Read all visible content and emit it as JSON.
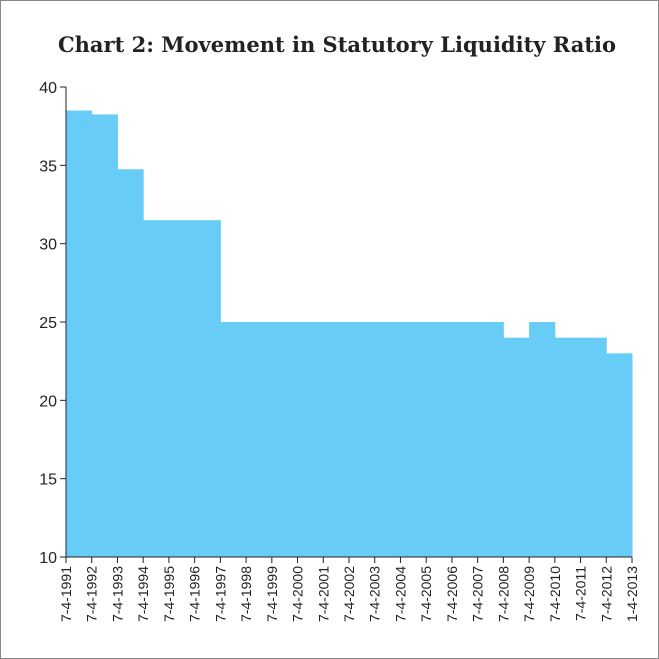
{
  "chart_data": {
    "type": "step-area",
    "title": "Chart 2: Movement in Statutory Liquidity Ratio",
    "categories": [
      "7-4-1991",
      "7-4-1992",
      "7-4-1993",
      "7-4-1994",
      "7-4-1995",
      "7-4-1996",
      "7-4-1997",
      "7-4-1998",
      "7-4-1999",
      "7-4-2000",
      "7-4-2001",
      "7-4-2002",
      "7-4-2003",
      "7-4-2004",
      "7-4-2005",
      "7-4-2006",
      "7-4-2007",
      "7-4-2008",
      "7-4-2009",
      "7-4-2010",
      "7-4-2011",
      "7-4-2012",
      "1-4-2013"
    ],
    "values": [
      38.5,
      38.25,
      34.75,
      31.5,
      31.5,
      31.5,
      25,
      25,
      25,
      25,
      25,
      25,
      25,
      25,
      25,
      25,
      25,
      24,
      25,
      24,
      24,
      23,
      23
    ],
    "color": "#68cdf6",
    "ylim": [
      10,
      40
    ],
    "yticks": [
      10,
      15,
      20,
      25,
      30,
      35,
      40
    ]
  }
}
